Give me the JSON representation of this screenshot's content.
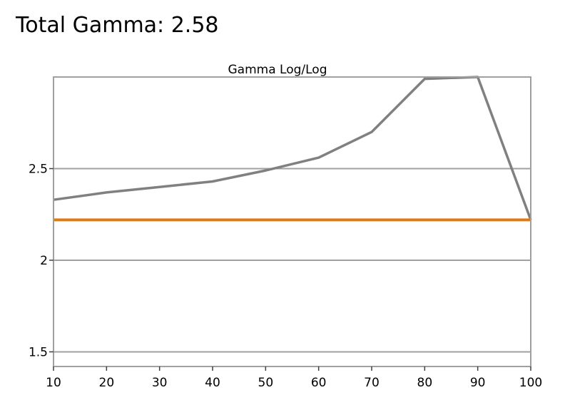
{
  "headline": "Total Gamma: 2.58",
  "chart_data": {
    "type": "line",
    "title": "Gamma Log/Log",
    "xlabel": "",
    "ylabel": "",
    "xlim": [
      10,
      100
    ],
    "ylim": [
      1.42,
      3.0
    ],
    "x_ticks": [
      10,
      20,
      30,
      40,
      50,
      60,
      70,
      80,
      90,
      100
    ],
    "y_ticks": [
      1.5,
      2,
      2.5
    ],
    "y_tick_labels": [
      "1.5",
      "2",
      "2.5"
    ],
    "grid": "horizontal",
    "legend": "none",
    "series": [
      {
        "color": "#808080",
        "x": [
          10,
          20,
          30,
          40,
          50,
          60,
          70,
          80,
          90,
          100
        ],
        "values": [
          2.33,
          2.37,
          2.4,
          2.43,
          2.49,
          2.56,
          2.7,
          2.99,
          3.0,
          2.22
        ]
      },
      {
        "color": "#e07b10",
        "x": [
          10,
          100
        ],
        "values": [
          2.22,
          2.22
        ]
      }
    ]
  }
}
